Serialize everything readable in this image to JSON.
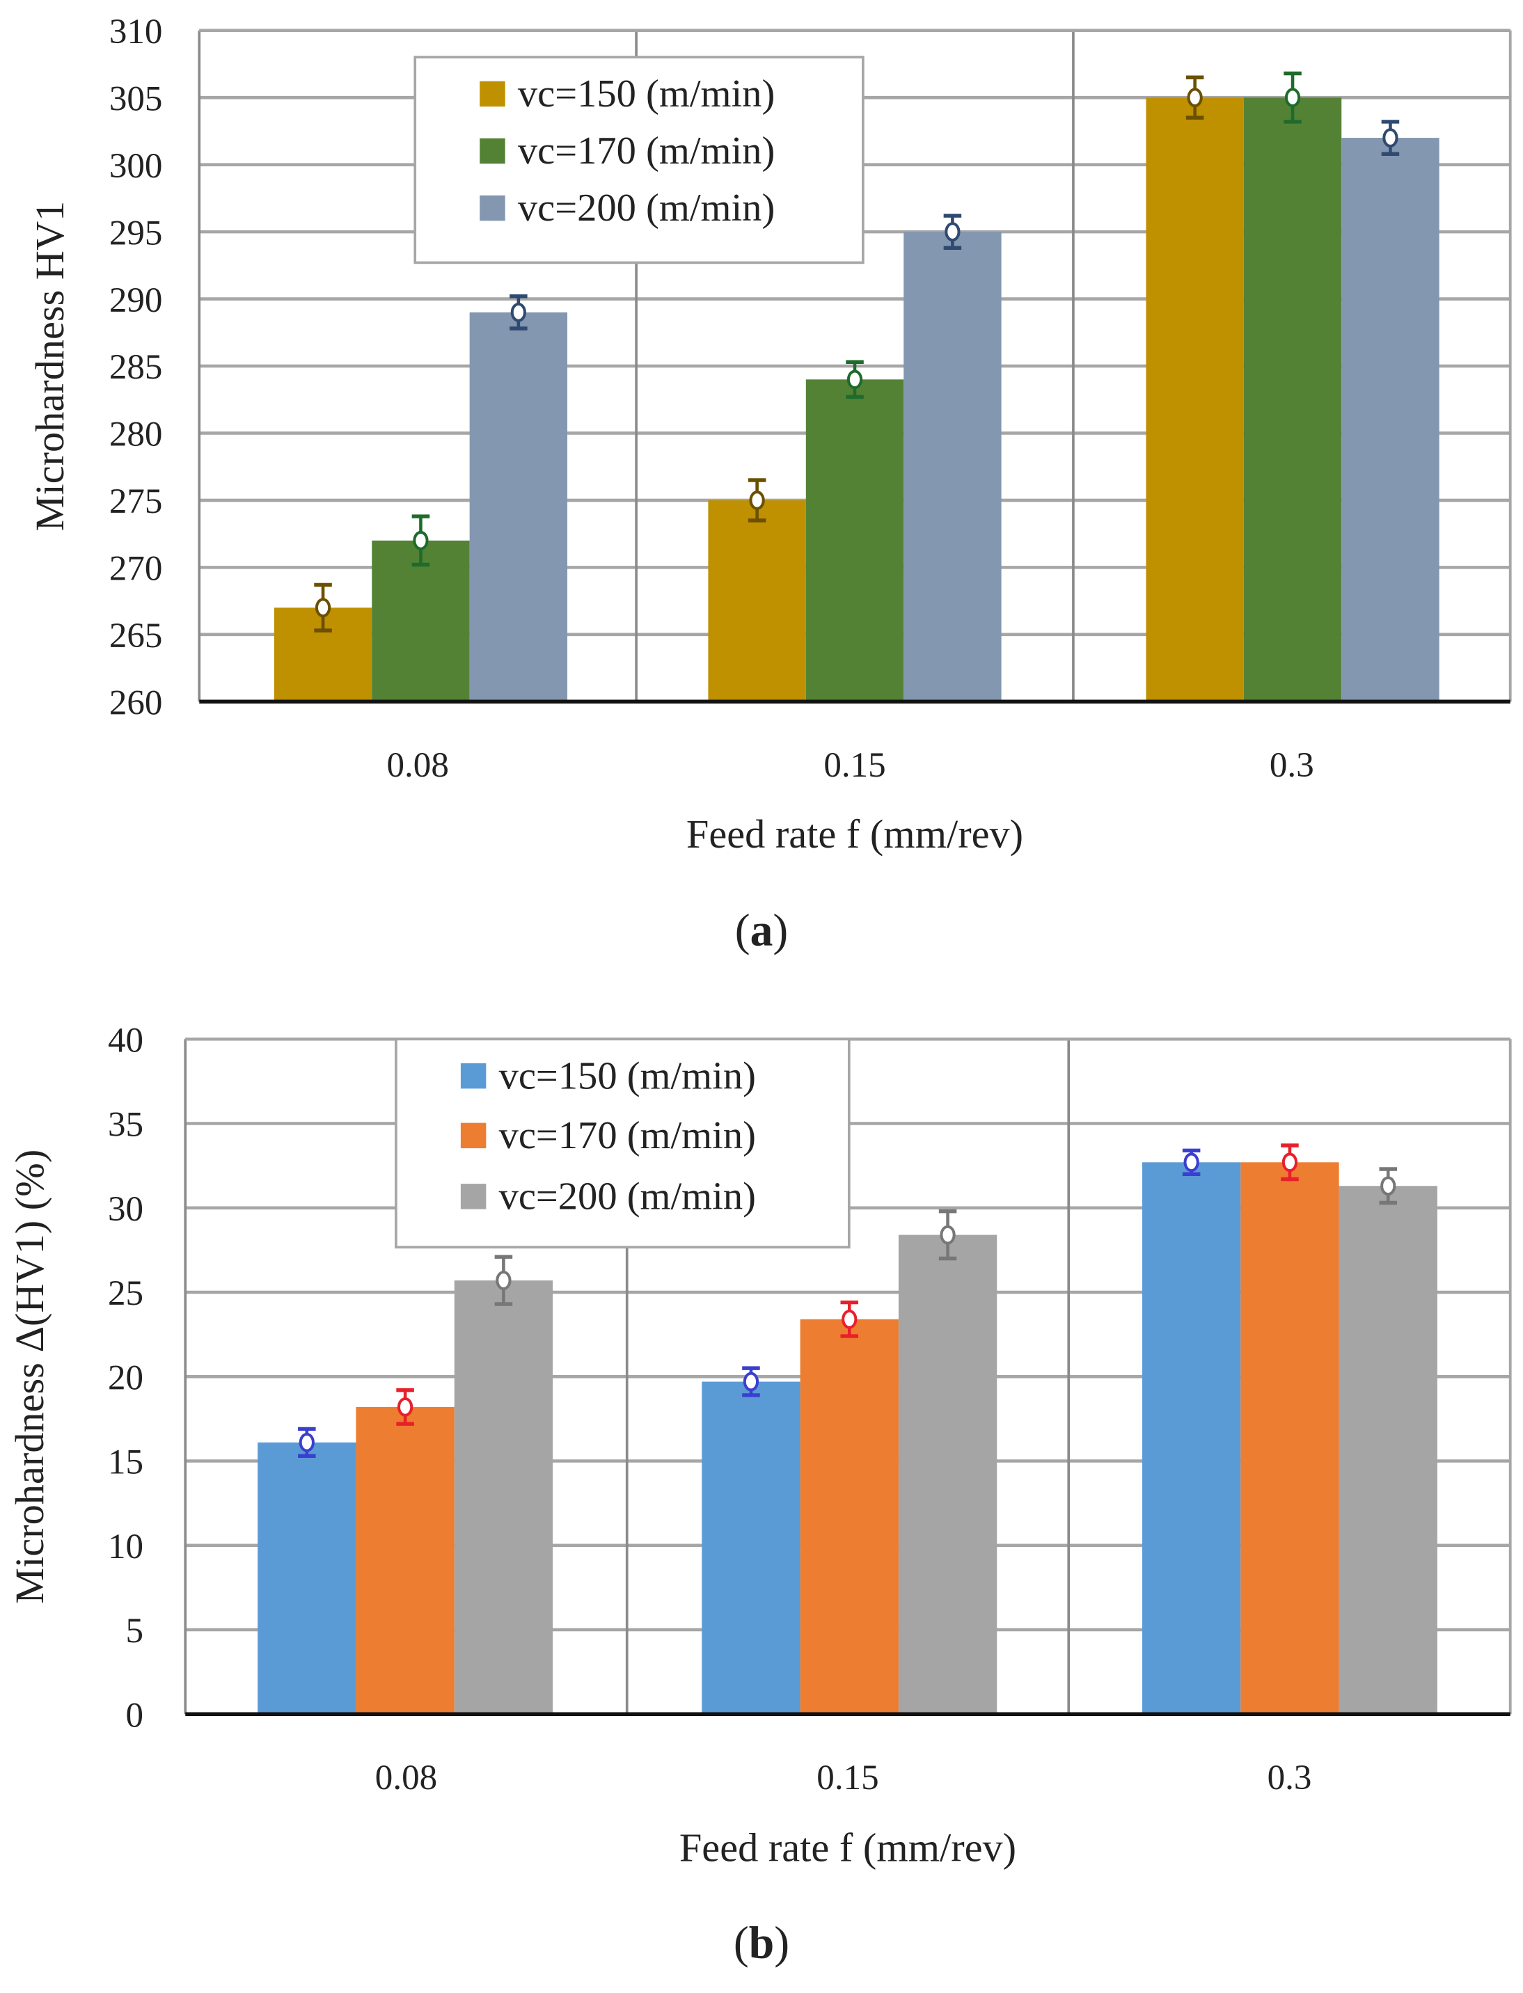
{
  "chart_data": [
    {
      "type": "bar",
      "panel_label": "a",
      "title": "",
      "xlabel": "Feed rate f (mm/rev)",
      "ylabel": "Microhardness HV1",
      "categories": [
        "0.08",
        "0.15",
        "0.3"
      ],
      "ylim": [
        260,
        310
      ],
      "ytick_step": 5,
      "grid": true,
      "legend_position": "top-left",
      "series": [
        {
          "name": "vc=150 (m/min)",
          "color": "#bf9000",
          "error_color": "#6b5000",
          "values": [
            267,
            275,
            305
          ],
          "errors": [
            1.7,
            1.5,
            1.5
          ]
        },
        {
          "name": "vc=170 (m/min)",
          "color": "#548235",
          "error_color": "#1e6b2c",
          "values": [
            272,
            284,
            305
          ],
          "errors": [
            1.8,
            1.3,
            1.8
          ]
        },
        {
          "name": "vc=200 (m/min)",
          "color": "#8497b0",
          "error_color": "#2f4a70",
          "values": [
            289,
            295,
            302
          ],
          "errors": [
            1.2,
            1.2,
            1.2
          ]
        }
      ]
    },
    {
      "type": "bar",
      "panel_label": "b",
      "title": "",
      "xlabel": "Feed rate f (mm/rev)",
      "ylabel": "Microhardness Δ(HV1) (%)",
      "categories": [
        "0.08",
        "0.15",
        "0.3"
      ],
      "ylim": [
        0,
        40
      ],
      "ytick_step": 5,
      "grid": true,
      "legend_position": "top-left",
      "series": [
        {
          "name": "vc=150 (m/min)",
          "color": "#5b9bd5",
          "error_color": "#3a3fcf",
          "values": [
            16.1,
            19.7,
            32.7
          ],
          "errors": [
            0.8,
            0.8,
            0.7
          ]
        },
        {
          "name": "vc=170 (m/min)",
          "color": "#ed7d31",
          "error_color": "#e8202a",
          "values": [
            18.2,
            23.4,
            32.7
          ],
          "errors": [
            1.0,
            1.0,
            1.0
          ]
        },
        {
          "name": "vc=200 (m/min)",
          "color": "#a5a5a5",
          "error_color": "#777777",
          "values": [
            25.7,
            28.4,
            31.3
          ],
          "errors": [
            1.4,
            1.4,
            1.0
          ]
        }
      ]
    }
  ]
}
